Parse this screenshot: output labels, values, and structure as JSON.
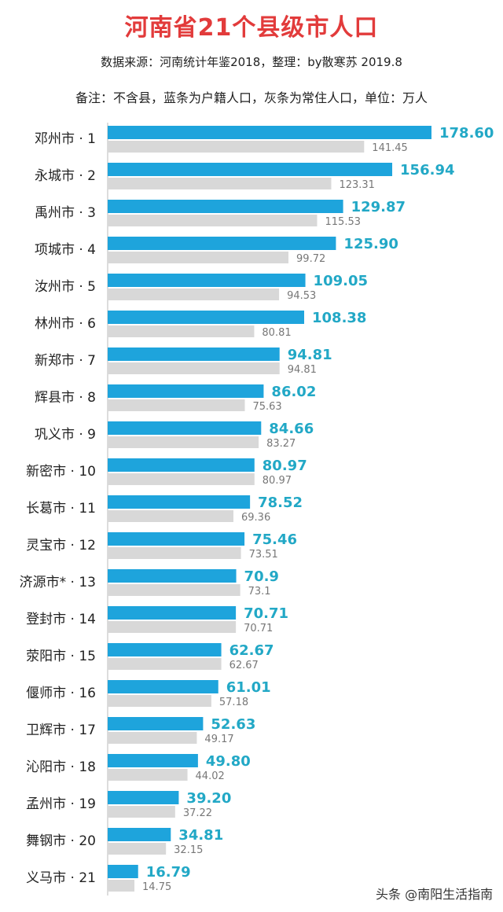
{
  "header": {
    "title": "河南省21个县级市人口",
    "source": "数据来源：河南统计年鉴2018，整理：by散寒苏  2019.8",
    "note": "备注：不含县，蓝条为户籍人口，灰条为常住人口，单位：万人"
  },
  "watermark": "头条 @南阳生活指南",
  "colors": {
    "registered_bar": "#1ea4dc",
    "resident_bar": "#d8d8d8",
    "registered_label": "#22a8c6",
    "resident_label": "#777777",
    "title": "#e23b3b"
  },
  "chart_data": {
    "type": "bar",
    "orientation": "horizontal",
    "categories": [
      "邓州市 · 1",
      "永城市 · 2",
      "禹州市 · 3",
      "项城市 · 4",
      "汝州市 · 5",
      "林州市 · 6",
      "新郑市 · 7",
      "辉县市 · 8",
      "巩义市 · 9",
      "新密市 · 10",
      "长葛市 · 11",
      "灵宝市 · 12",
      "济源市* · 13",
      "登封市 · 14",
      "荥阳市 · 15",
      "偃师市 · 16",
      "卫辉市 · 17",
      "沁阳市 · 18",
      "孟州市 · 19",
      "舞钢市 · 20",
      "义马市 · 21"
    ],
    "series": [
      {
        "values": [
          178.6,
          156.94,
          129.87,
          125.9,
          109.05,
          108.38,
          94.81,
          86.02,
          84.66,
          80.97,
          78.52,
          75.46,
          70.9,
          70.71,
          62.67,
          61.01,
          52.63,
          49.8,
          39.2,
          34.81,
          16.79
        ],
        "labels": [
          "178.60",
          "156.94",
          "129.87",
          "125.90",
          "109.05",
          "108.38",
          "94.81",
          "86.02",
          "84.66",
          "80.97",
          "78.52",
          "75.46",
          "70.9",
          "70.71",
          "62.67",
          "61.01",
          "52.63",
          "49.80",
          "39.20",
          "34.81",
          "16.79"
        ]
      },
      {
        "values": [
          141.45,
          123.31,
          115.53,
          99.72,
          94.53,
          80.81,
          94.81,
          75.63,
          83.27,
          80.97,
          69.36,
          73.51,
          73.1,
          70.71,
          62.67,
          57.18,
          49.17,
          44.02,
          37.22,
          32.15,
          14.75
        ],
        "labels": [
          "141.45",
          "123.31",
          "115.53",
          "99.72",
          "94.53",
          "80.81",
          "94.81",
          "75.63",
          "83.27",
          "80.97",
          "69.36",
          "73.51",
          "73.1",
          "70.71",
          "62.67",
          "57.18",
          "49.17",
          "44.02",
          "37.22",
          "32.15",
          "14.75"
        ]
      }
    ],
    "xlim": [
      0,
      180
    ],
    "grid": false,
    "legend": "none"
  }
}
